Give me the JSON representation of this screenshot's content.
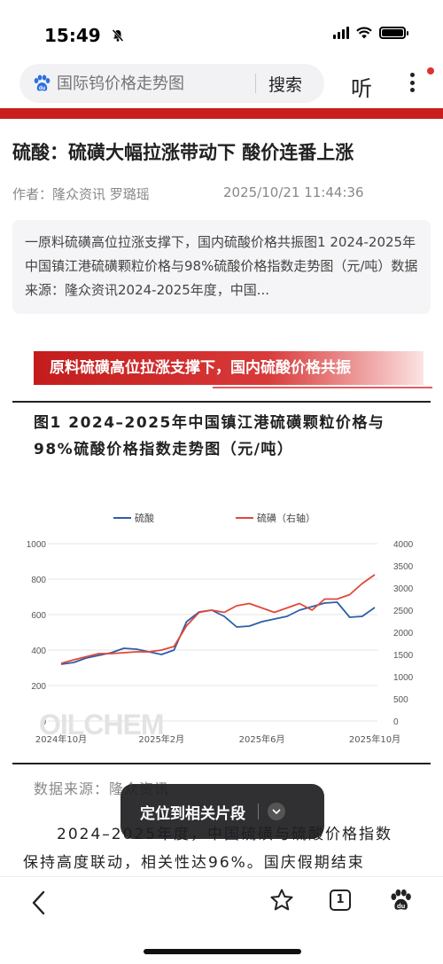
{
  "status": {
    "time": "15:49",
    "bell_icon": "bell-slash-icon"
  },
  "search": {
    "placeholder": "国际钨价格走势图",
    "button": "搜索",
    "listen": "听"
  },
  "article": {
    "title": "硫酸：硫磺大幅拉涨带动下 酸价连番上涨",
    "author": "作者：隆众资讯 罗璐瑶",
    "date": "2025/10/21 11:44:36",
    "summary": "一原料硫磺高位拉涨支撑下，国内硫酸价格共振图1 2024-2025年中国镇江港硫磺颗粒价格与98%硫酸价格指数走势图（元/吨）数据来源：隆众资讯2024-2025年度，中国..."
  },
  "section": {
    "banner": "原料硫磺高位拉涨支撑下，国内硫酸价格共振"
  },
  "figure": {
    "title": "图1 2024–2025年中国镇江港硫磺颗粒价格与98%硫酸价格指数走势图（元/吨）",
    "source": "数据来源：隆众资讯",
    "watermark": "OILCHEM"
  },
  "body": {
    "line1": "　　2024–2025年度，中国硫磺与硫酸价格指数",
    "line2": "保持高度联动，相关性达96%。国庆假期结束"
  },
  "toast": {
    "label": "定位到相关片段"
  },
  "bottom": {
    "tabs_count": "1"
  },
  "colors": {
    "accent": "#c81e1e",
    "sulfuric": "#2e5ea8",
    "sulfur": "#e0483a"
  },
  "chart_data": {
    "type": "line",
    "x": [
      "2024-10",
      "2024-10",
      "2024-11",
      "2024-11",
      "2024-12",
      "2024-12",
      "2025-01",
      "2025-01",
      "2025-02",
      "2025-02",
      "2025-03",
      "2025-03",
      "2025-04",
      "2025-04",
      "2025-05",
      "2025-05",
      "2025-06",
      "2025-06",
      "2025-07",
      "2025-07",
      "2025-08",
      "2025-08",
      "2025-09",
      "2025-09",
      "2025-10",
      "2025-10"
    ],
    "x_tick_labels": [
      "2024年10月",
      "2025年2月",
      "2025年6月",
      "2025年10月"
    ],
    "series": [
      {
        "name": "硫酸",
        "axis": "left",
        "values": [
          320,
          330,
          355,
          370,
          385,
          410,
          405,
          390,
          375,
          400,
          560,
          615,
          625,
          590,
          530,
          535,
          560,
          575,
          590,
          625,
          645,
          665,
          670,
          585,
          590,
          640
        ]
      },
      {
        "name": "硫磺（右轴）",
        "axis": "right",
        "values": [
          1300,
          1380,
          1450,
          1520,
          1520,
          1540,
          1560,
          1560,
          1600,
          1680,
          2150,
          2450,
          2500,
          2450,
          2600,
          2650,
          2550,
          2450,
          2550,
          2650,
          2500,
          2750,
          2750,
          2850,
          3100,
          3300
        ]
      }
    ],
    "left_axis": {
      "ylim": [
        0,
        1000
      ],
      "ticks": [
        "0",
        "200",
        "400",
        "600",
        "800",
        "1000"
      ]
    },
    "right_axis": {
      "ylim": [
        0,
        4000
      ],
      "ticks": [
        "0",
        "500",
        "1000",
        "1500",
        "2000",
        "2500",
        "3000",
        "3500",
        "4000"
      ]
    },
    "legend_position": "top"
  }
}
